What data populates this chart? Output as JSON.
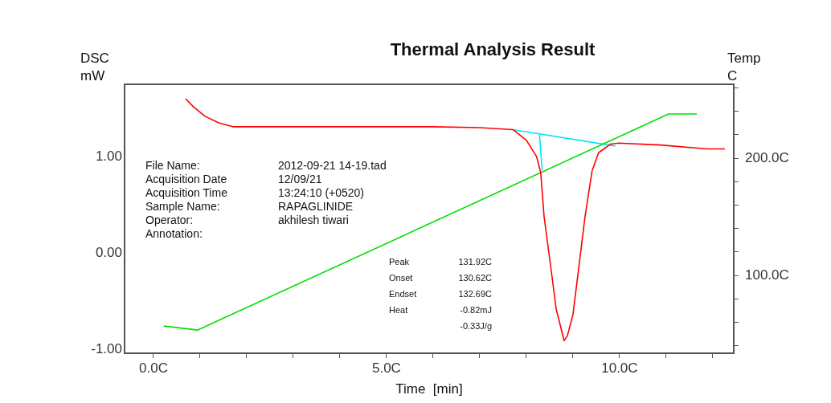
{
  "chart_data": {
    "type": "line",
    "title": "Thermal Analysis Result",
    "xlabel": "Time  [min]",
    "ylabel": "DSC mW",
    "y2label": "Temp C",
    "xlim": [
      -0.62,
      12.45
    ],
    "ylim": [
      -1.04,
      1.75
    ],
    "y2lim": [
      33.6,
      263
    ],
    "xticks": [
      {
        "value": 0,
        "label": "0.0C"
      },
      {
        "value": 1,
        "label": null
      },
      {
        "value": 2,
        "label": null
      },
      {
        "value": 3,
        "label": null
      },
      {
        "value": 4,
        "label": null
      },
      {
        "value": 5,
        "label": "5.0C"
      },
      {
        "value": 6,
        "label": null
      },
      {
        "value": 7,
        "label": null
      },
      {
        "value": 8,
        "label": null
      },
      {
        "value": 9,
        "label": null
      },
      {
        "value": 10,
        "label": "10.0C"
      },
      {
        "value": 11,
        "label": null
      },
      {
        "value": 12,
        "label": null
      }
    ],
    "yticks": [
      {
        "value": -1,
        "label": "-1.00"
      },
      {
        "value": 0,
        "label": "0.00"
      },
      {
        "value": 1,
        "label": "1.00"
      }
    ],
    "y2ticks": [
      {
        "value": 40,
        "label": null
      },
      {
        "value": 60,
        "label": null
      },
      {
        "value": 80,
        "label": null
      },
      {
        "value": 100,
        "label": "100.0C"
      },
      {
        "value": 120,
        "label": null
      },
      {
        "value": 140,
        "label": null
      },
      {
        "value": 160,
        "label": null
      },
      {
        "value": 180,
        "label": null
      },
      {
        "value": 200,
        "label": "200.0C"
      },
      {
        "value": 220,
        "label": null
      },
      {
        "value": 240,
        "label": null
      },
      {
        "value": 260,
        "label": null
      }
    ],
    "grid": false,
    "marker": "none",
    "series": [
      {
        "color": "#ff0000",
        "x": [
          0.69,
          0.85,
          1.1,
          1.4,
          1.7,
          4.0,
          6.0,
          7.0,
          7.71,
          7.74,
          8.0,
          8.22,
          8.31,
          8.38,
          8.52,
          8.64,
          8.78,
          8.81,
          8.88,
          9.0,
          9.12,
          9.26,
          9.41,
          9.55,
          9.81,
          9.98,
          10.88,
          11.88,
          12.26
        ],
        "values": [
          1.6,
          1.52,
          1.42,
          1.35,
          1.31,
          1.31,
          1.31,
          1.3,
          1.28,
          1.27,
          1.17,
          1.0,
          0.83,
          0.38,
          -0.13,
          -0.58,
          -0.85,
          -0.91,
          -0.86,
          -0.64,
          -0.17,
          0.38,
          0.85,
          1.04,
          1.13,
          1.14,
          1.12,
          1.08,
          1.08
        ]
      },
      {
        "color": "#00e000",
        "axis": "y2",
        "x": [
          0.22,
          0.95,
          11.05,
          11.66
        ],
        "values": [
          56.8,
          53.4,
          237.7,
          237.7
        ]
      },
      {
        "color": "#00e5ff",
        "x": [
          7.71,
          9.91
        ],
        "values": [
          1.28,
          1.11
        ]
      },
      {
        "color": "#00e5ff",
        "x": [
          8.28,
          8.34
        ],
        "values": [
          1.24,
          0.86
        ]
      }
    ],
    "annotations": [
      "File Name:",
      "2012-09-21 14-19.tad",
      "Acquisition Date",
      "12/09/21",
      "Acquisition Time",
      "13:24:10 (+0520)",
      "Sample Name:",
      "RAPAGLINIDE",
      "Operator:",
      "akhilesh tiwari",
      "Annotation:",
      "Peak",
      "131.92C",
      "Onset",
      "130.62C",
      "Endset",
      "132.69C",
      "Heat",
      "-0.82mJ",
      "-0.33J/g"
    ]
  }
}
